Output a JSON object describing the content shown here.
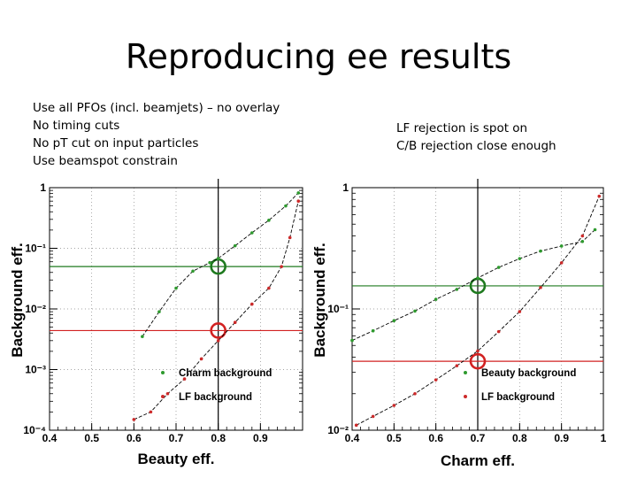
{
  "slide": {
    "title": "Reproducing ee results",
    "left_notes": [
      "Use all PFOs (incl. beamjets) – no overlay",
      "No timing cuts",
      "No pT cut on input particles",
      "Use beamspot constrain"
    ],
    "right_notes": [
      "LF rejection is spot on",
      "C/B rejection close enough"
    ]
  },
  "colors": {
    "charm": "#2e9a2e",
    "lf": "#cc2a2a",
    "circle_green": "#1f7a1f",
    "circle_red": "#d22222",
    "axis": "#000000"
  },
  "chart_data": [
    {
      "type": "line",
      "xlabel": "Beauty eff.",
      "ylabel": "Background eff.",
      "xlim": [
        0.4,
        1.0
      ],
      "ylim": [
        0.0001,
        1
      ],
      "yscale": "log",
      "grid": true,
      "legend_position": "bottom-right",
      "xticks": [
        "0.4",
        "0.5",
        "0.6",
        "0.7",
        "0.8",
        "0.9"
      ],
      "yticks": [
        {
          "value": 1,
          "label": "1"
        },
        {
          "value": 0.1,
          "label": "10⁻¹"
        },
        {
          "value": 0.01,
          "label": "10⁻²"
        },
        {
          "value": 0.001,
          "label": "10⁻³"
        },
        {
          "value": 0.0001,
          "label": "10⁻⁴"
        }
      ],
      "series": [
        {
          "name": "Charm background",
          "color": "#2e9a2e",
          "x": [
            0.62,
            0.66,
            0.7,
            0.74,
            0.78,
            0.8,
            0.84,
            0.88,
            0.92,
            0.96,
            0.99
          ],
          "y": [
            0.0035,
            0.009,
            0.022,
            0.042,
            0.058,
            0.068,
            0.11,
            0.18,
            0.29,
            0.5,
            0.82
          ]
        },
        {
          "name": "LF background",
          "color": "#cc2a2a",
          "x": [
            0.6,
            0.64,
            0.68,
            0.72,
            0.76,
            0.8,
            0.84,
            0.88,
            0.92,
            0.95,
            0.97,
            0.99
          ],
          "y": [
            0.00015,
            0.0002,
            0.0004,
            0.0007,
            0.0015,
            0.003,
            0.006,
            0.012,
            0.022,
            0.05,
            0.15,
            0.6
          ]
        }
      ],
      "working_point": {
        "x": 0.8,
        "y_values": [
          0.05,
          0.0044
        ],
        "colors": [
          "#1f7a1f",
          "#d22222"
        ]
      }
    },
    {
      "type": "line",
      "xlabel": "Charm eff.",
      "ylabel": "Background eff.",
      "xlim": [
        0.4,
        1.0
      ],
      "ylim": [
        0.01,
        1
      ],
      "yscale": "log",
      "grid": true,
      "legend_position": "bottom-right",
      "xticks": [
        "0.4",
        "0.5",
        "0.6",
        "0.7",
        "0.8",
        "0.9",
        "1"
      ],
      "yticks": [
        {
          "value": 1,
          "label": "1"
        },
        {
          "value": 0.1,
          "label": "10⁻¹"
        },
        {
          "value": 0.01,
          "label": "10⁻²"
        }
      ],
      "series": [
        {
          "name": "Beauty background",
          "color": "#2e9a2e",
          "x": [
            0.4,
            0.45,
            0.5,
            0.55,
            0.6,
            0.65,
            0.7,
            0.75,
            0.8,
            0.85,
            0.9,
            0.95,
            0.98
          ],
          "y": [
            0.055,
            0.066,
            0.08,
            0.096,
            0.12,
            0.145,
            0.18,
            0.22,
            0.26,
            0.3,
            0.33,
            0.36,
            0.45
          ]
        },
        {
          "name": "LF background",
          "color": "#cc2a2a",
          "x": [
            0.41,
            0.45,
            0.5,
            0.55,
            0.6,
            0.65,
            0.7,
            0.75,
            0.8,
            0.85,
            0.9,
            0.95,
            0.99
          ],
          "y": [
            0.011,
            0.013,
            0.016,
            0.02,
            0.026,
            0.034,
            0.045,
            0.065,
            0.095,
            0.15,
            0.24,
            0.4,
            0.85
          ]
        }
      ],
      "working_point": {
        "x": 0.7,
        "y_values": [
          0.155,
          0.037
        ],
        "colors": [
          "#1f7a1f",
          "#d22222"
        ]
      }
    }
  ]
}
